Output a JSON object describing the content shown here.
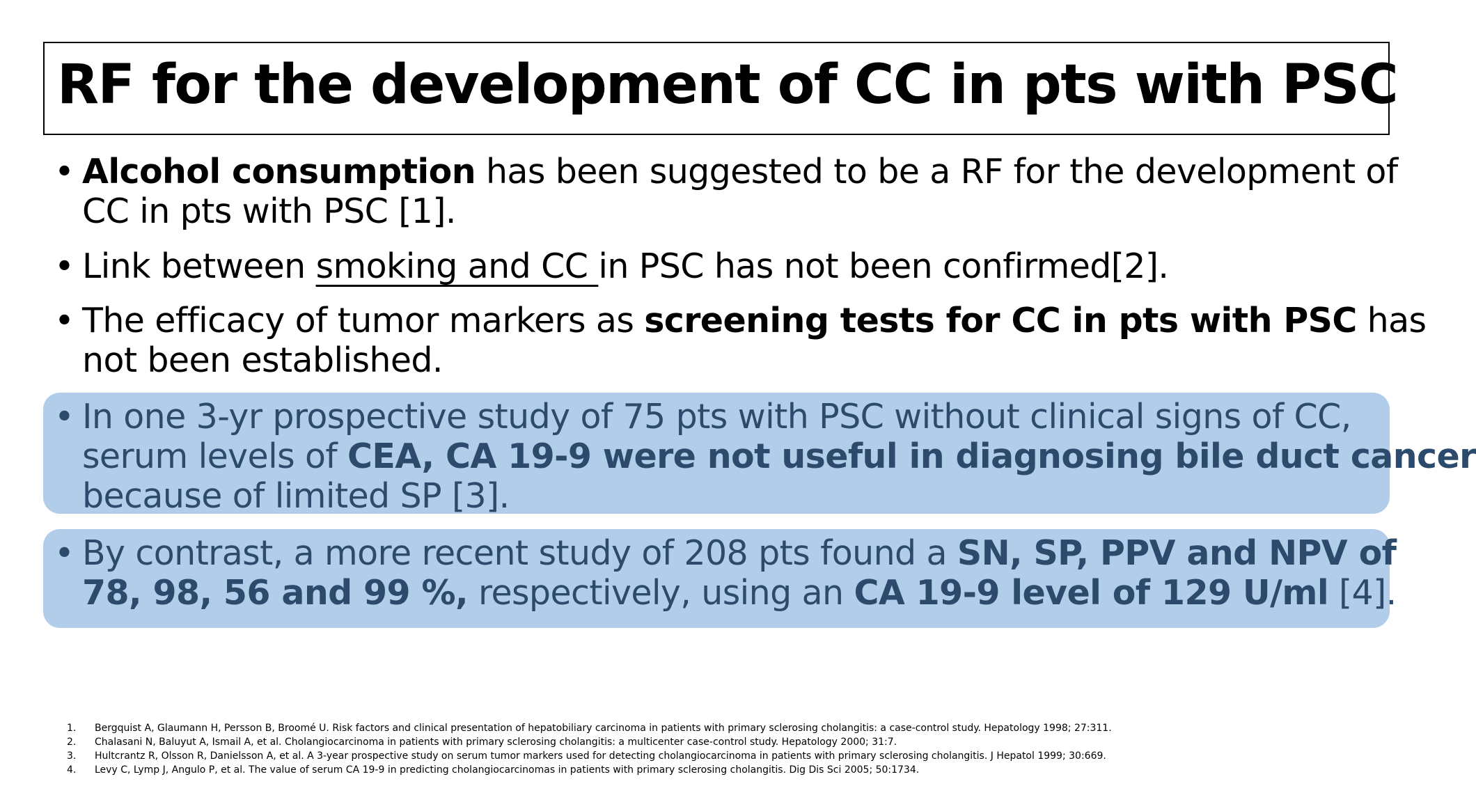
{
  "title": "RF for the development of CC in pts with PSC",
  "bullets": {
    "b1": {
      "bold_lead": "Alcohol consumption",
      "l1_rest": " has been suggested to be a RF for the development of",
      "l2": "CC in pts with PSC [1]."
    },
    "b2": {
      "pre": "Link between ",
      "underlined": "smoking and CC ",
      "post": "in PSC has not been confirmed[2]."
    },
    "b3": {
      "l1_pre": "The efficacy of tumor markers as ",
      "l1_bold": "screening tests for CC in pts with PSC",
      "l1_post": " has",
      "l2": "not been established."
    },
    "b4": {
      "l1": "In one 3-yr prospective study of 75 pts with PSC without clinical signs of CC,",
      "l2_pre": "serum levels of ",
      "l2_bold": "CEA, CA 19-9 were not useful in diagnosing bile duct cancer",
      "l3": "because of limited SP [3]."
    },
    "b5": {
      "l1_pre": "By contrast, a more recent study of 208 pts found a ",
      "l1_bold": "SN, SP, PPV and NPV of",
      "l2_bold1": "78, 98, 56 and 99 %,",
      "l2_mid": " respectively, using an ",
      "l2_bold2": "CA 19-9 level of 129 U/ml",
      "l2_end": " [4]."
    },
    "bullet_symbol": "•"
  },
  "references": [
    {
      "num": "1.",
      "text": "Bergquist A, Glaumann H, Persson B, Broomé U. Risk factors and clinical presentation of hepatobiliary carcinoma in patients with primary sclerosing cholangitis: a case-control study. Hepatology 1998; 27:311."
    },
    {
      "num": "2.",
      "text": "Chalasani N, Baluyut A, Ismail A, et al. Cholangiocarcinoma in patients with primary sclerosing cholangitis: a multicenter case-control study. Hepatology 2000; 31:7."
    },
    {
      "num": "3.",
      "text": "Hultcrantz R, Olsson R, Danielsson A, et al. A 3-year prospective study on serum tumor markers used for detecting cholangiocarcinoma in patients with primary sclerosing cholangitis. J Hepatol 1999; 30:669."
    },
    {
      "num": "4.",
      "text": "Levy C, Lymp J, Angulo P, et al. The value of serum CA 19-9 in predicting cholangiocarcinomas in patients with primary sclerosing cholangitis. Dig Dis Sci 2005; 50:1734."
    }
  ],
  "colors": {
    "highlight_bg": "#b1cde9",
    "highlight_text": "#2c4a6b",
    "text": "#000000"
  }
}
